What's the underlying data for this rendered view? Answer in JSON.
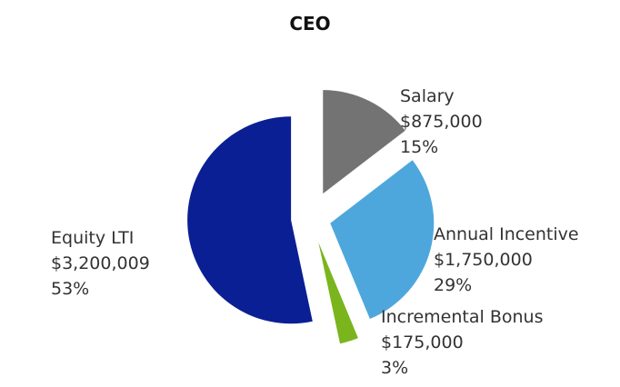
{
  "chart_data": {
    "type": "pie",
    "title": "CEO",
    "slices": [
      {
        "name": "Salary",
        "amount": "$875,000",
        "pct": "15%",
        "value": 875000,
        "color": "#737373"
      },
      {
        "name": "Annual Incentive",
        "amount": "$1,750,000",
        "pct": "29%",
        "value": 1750000,
        "color": "#4ea7dc"
      },
      {
        "name": "Incremental Bonus",
        "amount": "$175,000",
        "pct": "3%",
        "value": 175000,
        "color": "#7ab51d"
      },
      {
        "name": "Equity LTI",
        "amount": "$3,200,009",
        "pct": "53%",
        "value": 3200009,
        "color": "#0b1f94"
      }
    ]
  }
}
